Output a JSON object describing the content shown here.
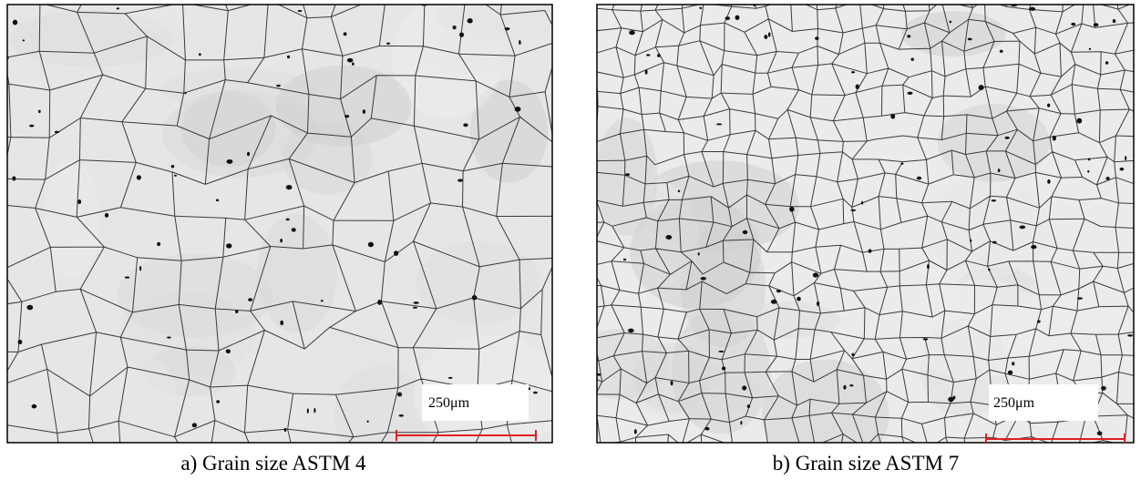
{
  "panels": [
    {
      "scale_label": "250μm",
      "caption": "a) Grain size ASTM 4"
    },
    {
      "scale_label": "250μm",
      "caption": "b) Grain size ASTM 7"
    }
  ]
}
